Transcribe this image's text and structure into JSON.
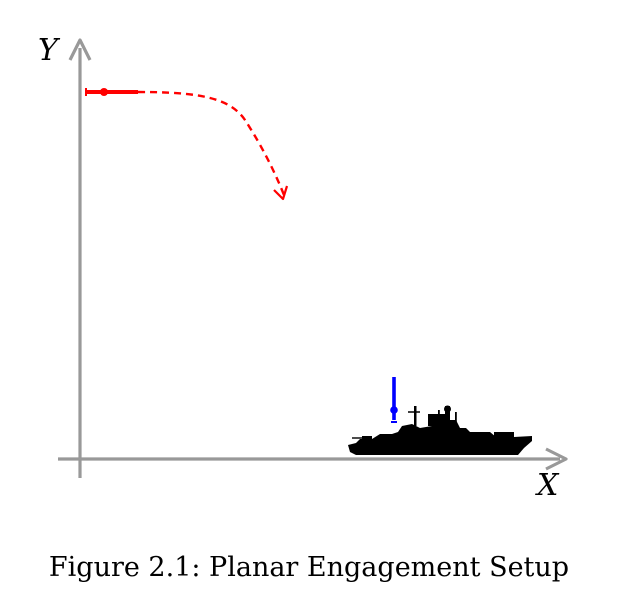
{
  "axes": {
    "x_label": "X",
    "y_label": "Y"
  },
  "caption": "Figure 2.1: Planar Engagement Setup",
  "colors": {
    "axis": "#999999",
    "attacker_missile": "#ff0000",
    "interceptor": "#0000ff",
    "ship": "#000000"
  },
  "icons": {
    "attacker": "missile-icon",
    "interceptor": "interceptor-missile-icon",
    "target": "warship-silhouette-icon"
  }
}
